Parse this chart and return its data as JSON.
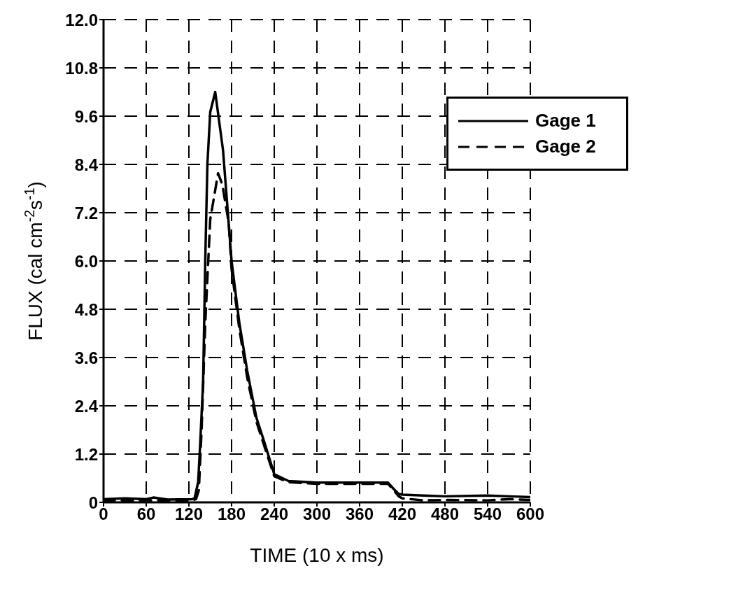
{
  "chart_data": {
    "type": "line",
    "xlabel": "TIME (10 x ms)",
    "ylabel": "FLUX (cal cm$^{-2}$s$^{-1}$)",
    "xlim": [
      0,
      600
    ],
    "xticks": [
      0,
      60,
      120,
      180,
      240,
      300,
      360,
      420,
      480,
      540,
      600
    ],
    "ylim": [
      0,
      12
    ],
    "yticks": [
      0,
      {
        "value": 1.2,
        "label": "1.2"
      },
      {
        "value": 2.4,
        "label": "2.4"
      },
      {
        "value": 3.6,
        "label": "3.6"
      },
      {
        "value": 4.8,
        "label": "4.8"
      },
      {
        "value": 6,
        "label": "6.0"
      },
      {
        "value": 7.2,
        "label": "7.2"
      },
      {
        "value": 8.4,
        "label": "8.4"
      },
      {
        "value": 9.6,
        "label": "9.6"
      },
      {
        "value": 10.8,
        "label": "10.8"
      },
      {
        "value": 12,
        "label": "12.0"
      }
    ],
    "grid": true,
    "legend": "top right",
    "marker": "none",
    "series": [
      {
        "name": "Gage 1",
        "color": "#000000",
        "line_style": "solid",
        "x": [
          0,
          30,
          60,
          70,
          90,
          125,
          128,
          133,
          136,
          140,
          143,
          146,
          150,
          157,
          168,
          180,
          191,
          202,
          215,
          226,
          240,
          260,
          300,
          360,
          400,
          408,
          415,
          420,
          450,
          480,
          540,
          570,
          600
        ],
        "values": [
          0.08,
          0.1,
          0.08,
          0.12,
          0.07,
          0.08,
          0.1,
          0.5,
          1.5,
          3.0,
          6.0,
          8.4,
          9.7,
          10.2,
          8.75,
          6.0,
          4.45,
          3.27,
          2.1,
          1.5,
          0.7,
          0.53,
          0.49,
          0.49,
          0.49,
          0.33,
          0.21,
          0.19,
          0.17,
          0.15,
          0.17,
          0.15,
          0.13
        ]
      },
      {
        "name": "Gage 2",
        "color": "#000000",
        "line_style": "dashed",
        "x": [
          0,
          60,
          125,
          130,
          134,
          138,
          143,
          150,
          161,
          167,
          176,
          180,
          191,
          202,
          215,
          226,
          240,
          260,
          300,
          360,
          400,
          408,
          415,
          420,
          450,
          480,
          540,
          570,
          600
        ],
        "values": [
          0.05,
          0.05,
          0.05,
          0.08,
          0.3,
          1.87,
          4.45,
          7.03,
          8.18,
          7.9,
          6.95,
          5.8,
          4.3,
          3.1,
          2.0,
          1.4,
          0.65,
          0.5,
          0.46,
          0.46,
          0.46,
          0.3,
          0.15,
          0.1,
          0.05,
          0.06,
          0.05,
          0.08,
          0.06
        ]
      }
    ]
  }
}
